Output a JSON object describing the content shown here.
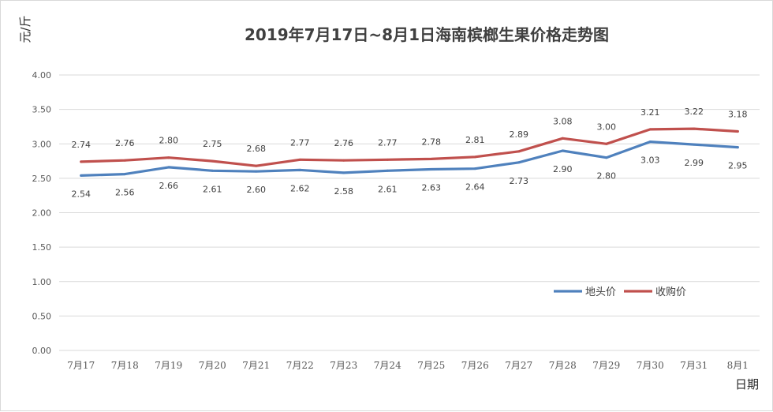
{
  "chart_data": {
    "type": "line",
    "title": "2019年7月17日~8月1日海南槟榔生果价格走势图",
    "ylabel": "元/斤",
    "xlabel": "日期",
    "ylim": [
      0,
      4
    ],
    "yticks": [
      "0.00",
      "0.50",
      "1.00",
      "1.50",
      "2.00",
      "2.50",
      "3.00",
      "3.50",
      "4.00"
    ],
    "categories": [
      "7月17",
      "7月18",
      "7月19",
      "7月20",
      "7月21",
      "7月22",
      "7月23",
      "7月24",
      "7月25",
      "7月26",
      "7月27",
      "7月28",
      "7月29",
      "7月30",
      "7月31",
      "8月1"
    ],
    "grid": true,
    "legend_position": "right",
    "series": [
      {
        "name": "地头价",
        "color": "#4f81bd",
        "values": [
          2.54,
          2.56,
          2.66,
          2.61,
          2.6,
          2.62,
          2.58,
          2.61,
          2.63,
          2.64,
          2.73,
          2.9,
          2.8,
          3.03,
          2.99,
          2.95
        ],
        "labels": [
          "2.54",
          "2.56",
          "2.66",
          "2.61",
          "2.60",
          "2.62",
          "2.58",
          "2.61",
          "2.63",
          "2.64",
          "2.73",
          "2.90",
          "2.80",
          "3.03",
          "2.99",
          "2.95"
        ]
      },
      {
        "name": "收购价",
        "color": "#c0504d",
        "values": [
          2.74,
          2.76,
          2.8,
          2.75,
          2.68,
          2.77,
          2.76,
          2.77,
          2.78,
          2.81,
          2.89,
          3.08,
          3.0,
          3.21,
          3.22,
          3.18
        ],
        "labels": [
          "2.74",
          "2.76",
          "2.80",
          "2.75",
          "2.68",
          "2.77",
          "2.76",
          "2.77",
          "2.78",
          "2.81",
          "2.89",
          "3.08",
          "3.00",
          "3.21",
          "3.22",
          "3.18"
        ]
      }
    ]
  }
}
